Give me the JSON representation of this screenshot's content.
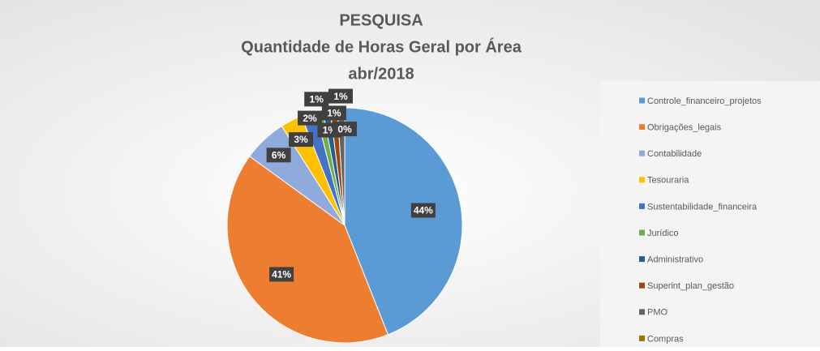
{
  "chart_data": {
    "type": "pie",
    "title": [
      "PESQUISA",
      "Quantidade de Horas Geral por Área",
      "abr/2018"
    ],
    "categories": [
      "Controle_financeiro_projetos",
      "Obrigações_legais",
      "Contabilidade",
      "Tesouraria",
      "Sustentabilidade_financeira",
      "Jurídico",
      "Administrativo",
      "Superint_plan_gestão",
      "PMO",
      "Compras"
    ],
    "values": [
      44,
      41,
      6,
      3,
      2,
      1,
      1,
      1,
      1,
      0
    ],
    "value_labels": [
      "44%",
      "41%",
      "6%",
      "3%",
      "2%",
      "1%",
      "1%",
      "1%",
      "1%",
      "0%"
    ],
    "colors": [
      "#5b9bd5",
      "#ed7d31",
      "#8faadc",
      "#ffc000",
      "#4472c4",
      "#70ad47",
      "#255e91",
      "#9e480e",
      "#636363",
      "#997300"
    ],
    "legend": "right"
  }
}
